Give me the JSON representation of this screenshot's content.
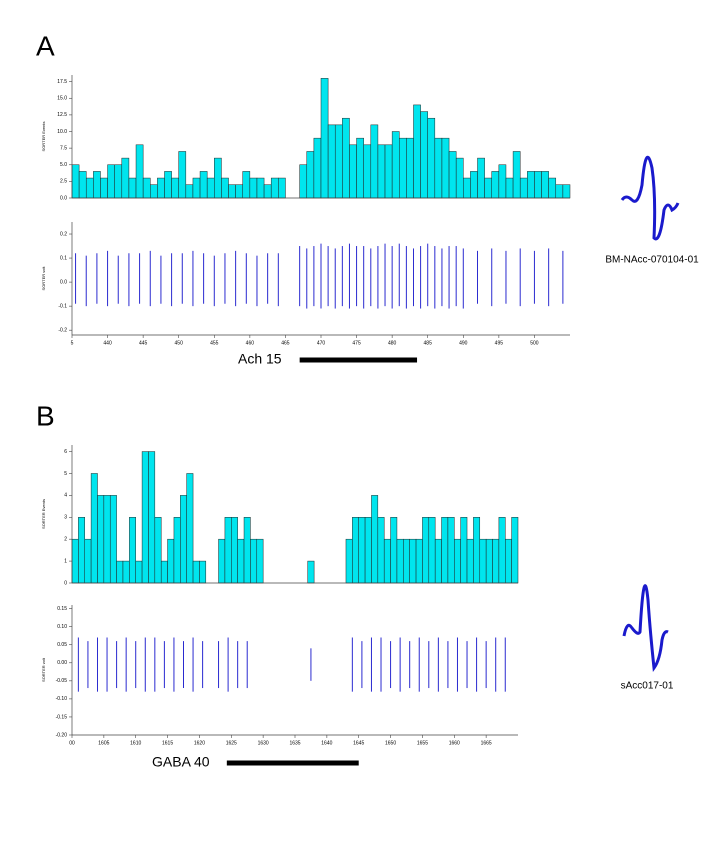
{
  "chart_data": [
    {
      "type": "histogram",
      "panel": "A",
      "unit": "BM-NAcc-070104-01",
      "y_label": "SORTER Events",
      "color": "#00e5ee",
      "bins": [
        435,
        436,
        437,
        438,
        439,
        440,
        441,
        442,
        443,
        444,
        445,
        446,
        447,
        448,
        449,
        450,
        451,
        452,
        453,
        454,
        455,
        456,
        457,
        458,
        459,
        460,
        461,
        462,
        463,
        464,
        465,
        466,
        467,
        468,
        469,
        470,
        471,
        472,
        473,
        474,
        475,
        476,
        477,
        478,
        479,
        480,
        481,
        482,
        483,
        484,
        485,
        486,
        487,
        488,
        489,
        490,
        491,
        492,
        493,
        494,
        495,
        496,
        497,
        498,
        499,
        500,
        501,
        502,
        503,
        504,
        505
      ],
      "values": [
        5,
        4,
        3,
        4,
        3,
        5,
        5,
        6,
        3,
        8,
        3,
        2,
        3,
        4,
        3,
        7,
        2,
        3,
        4,
        3,
        6,
        3,
        2,
        2,
        4,
        3,
        3,
        2,
        3,
        3,
        0,
        0,
        5,
        7,
        9,
        18,
        11,
        11,
        12,
        8,
        9,
        8,
        11,
        8,
        8,
        10,
        9,
        9,
        14,
        13,
        12,
        9,
        9,
        7,
        6,
        3,
        4,
        6,
        3,
        4,
        5,
        3,
        7,
        3,
        4,
        4,
        4,
        3,
        2,
        2
      ],
      "xlim": [
        435,
        505
      ],
      "xticks": [
        {
          "value": 435,
          "label": "5"
        },
        440,
        445,
        450,
        455,
        460,
        465,
        470,
        475,
        480,
        485,
        490,
        495,
        500
      ],
      "ylim": [
        0,
        18.5
      ],
      "yticks": [
        {
          "value": 0,
          "label": "0.0"
        },
        2.5,
        {
          "value": 5,
          "label": "5.0"
        },
        7.5,
        {
          "value": 10,
          "label": "10.0"
        },
        12.5,
        {
          "value": 15,
          "label": "15.0"
        },
        17.5
      ],
      "raster": {
        "y_label": "SORTER volt",
        "color": "#2a2ad0",
        "ylim": [
          -0.22,
          0.25
        ],
        "yticks": [
          -0.2,
          -0.1,
          {
            "value": 0,
            "label": "0.0"
          },
          0.1,
          0.2
        ],
        "x": [
          435.5,
          437,
          438.5,
          440,
          441.5,
          443,
          444.5,
          446,
          447.5,
          449,
          450.5,
          452,
          453.5,
          455,
          456.5,
          458,
          459.5,
          461,
          462.5,
          464,
          467,
          468,
          469,
          470,
          471,
          472,
          473,
          474,
          475,
          476,
          477,
          478,
          479,
          480,
          481,
          482,
          483,
          484,
          485,
          486,
          487,
          488,
          489,
          490,
          492,
          494,
          496,
          498,
          500,
          502,
          504
        ],
        "top": [
          0.12,
          0.11,
          0.12,
          0.13,
          0.11,
          0.12,
          0.12,
          0.13,
          0.11,
          0.12,
          0.12,
          0.13,
          0.12,
          0.11,
          0.12,
          0.13,
          0.12,
          0.11,
          0.12,
          0.12,
          0.15,
          0.14,
          0.15,
          0.16,
          0.15,
          0.14,
          0.15,
          0.16,
          0.15,
          0.15,
          0.14,
          0.15,
          0.16,
          0.15,
          0.16,
          0.15,
          0.14,
          0.15,
          0.16,
          0.15,
          0.14,
          0.15,
          0.15,
          0.14,
          0.13,
          0.14,
          0.13,
          0.14,
          0.13,
          0.14,
          0.13
        ],
        "bottom": [
          -0.09,
          -0.1,
          -0.09,
          -0.1,
          -0.09,
          -0.1,
          -0.09,
          -0.1,
          -0.09,
          -0.1,
          -0.09,
          -0.1,
          -0.09,
          -0.1,
          -0.09,
          -0.1,
          -0.09,
          -0.1,
          -0.09,
          -0.1,
          -0.1,
          -0.11,
          -0.1,
          -0.11,
          -0.1,
          -0.11,
          -0.1,
          -0.11,
          -0.1,
          -0.11,
          -0.1,
          -0.11,
          -0.1,
          -0.11,
          -0.1,
          -0.11,
          -0.1,
          -0.11,
          -0.1,
          -0.11,
          -0.1,
          -0.11,
          -0.1,
          -0.11,
          -0.09,
          -0.1,
          -0.09,
          -0.1,
          -0.09,
          -0.1,
          -0.09
        ]
      },
      "treatment": {
        "label": "Ach 15",
        "start": 467,
        "end": 483.5
      }
    },
    {
      "type": "histogram",
      "panel": "B",
      "unit": "sAcc017-01",
      "y_label": "SORTER Events",
      "color": "#00e5ee",
      "bins": [
        1600,
        1601,
        1602,
        1603,
        1604,
        1605,
        1606,
        1607,
        1608,
        1609,
        1610,
        1611,
        1612,
        1613,
        1614,
        1615,
        1616,
        1617,
        1618,
        1619,
        1620,
        1621,
        1622,
        1623,
        1624,
        1625,
        1626,
        1627,
        1628,
        1629,
        1630,
        1631,
        1632,
        1633,
        1634,
        1635,
        1636,
        1637,
        1638,
        1639,
        1640,
        1641,
        1642,
        1643,
        1644,
        1645,
        1646,
        1647,
        1648,
        1649,
        1650,
        1651,
        1652,
        1653,
        1654,
        1655,
        1656,
        1657,
        1658,
        1659,
        1660,
        1661,
        1662,
        1663,
        1664,
        1665,
        1666,
        1667,
        1668,
        1669,
        1670
      ],
      "values": [
        2,
        3,
        2,
        5,
        4,
        4,
        4,
        1,
        1,
        3,
        1,
        6,
        6,
        3,
        1,
        2,
        3,
        4,
        5,
        1,
        1,
        0,
        0,
        2,
        3,
        3,
        2,
        3,
        2,
        2,
        0,
        0,
        0,
        0,
        0,
        0,
        0,
        1,
        0,
        0,
        0,
        0,
        0,
        2,
        3,
        3,
        3,
        4,
        3,
        2,
        3,
        2,
        2,
        2,
        2,
        3,
        3,
        2,
        3,
        3,
        2,
        3,
        2,
        3,
        2,
        2,
        2,
        3,
        2,
        3
      ],
      "xlim": [
        1600,
        1670
      ],
      "xticks": [
        {
          "value": 1600,
          "label": "00"
        },
        1605,
        1610,
        1615,
        1620,
        1625,
        1630,
        1635,
        1640,
        1645,
        1650,
        1655,
        1660,
        1665
      ],
      "ylim": [
        0,
        6.3
      ],
      "yticks": [
        0,
        1,
        2,
        3,
        4,
        5,
        6
      ],
      "raster": {
        "y_label": "SORTER volt",
        "color": "#2a2ad0",
        "ylim": [
          -0.2,
          0.16
        ],
        "yticks": [
          {
            "value": -0.2,
            "label": "-0.20"
          },
          -0.15,
          {
            "value": -0.1,
            "label": "-0.10"
          },
          -0.05,
          {
            "value": 0,
            "label": "0.00"
          },
          0.05,
          {
            "value": 0.1,
            "label": "0.10"
          },
          0.15
        ],
        "x": [
          1601,
          1602.5,
          1604,
          1605.5,
          1607,
          1608.5,
          1610,
          1611.5,
          1613,
          1614.5,
          1616,
          1617.5,
          1619,
          1620.5,
          1623,
          1624.5,
          1626,
          1627.5,
          1637.5,
          1644,
          1645.5,
          1647,
          1648.5,
          1650,
          1651.5,
          1653,
          1654.5,
          1656,
          1657.5,
          1659,
          1660.5,
          1662,
          1663.5,
          1665,
          1666.5,
          1668
        ],
        "top": [
          0.07,
          0.06,
          0.07,
          0.07,
          0.06,
          0.07,
          0.06,
          0.07,
          0.07,
          0.06,
          0.07,
          0.06,
          0.07,
          0.06,
          0.06,
          0.07,
          0.06,
          0.06,
          0.04,
          0.07,
          0.06,
          0.07,
          0.07,
          0.06,
          0.07,
          0.06,
          0.07,
          0.06,
          0.07,
          0.06,
          0.07,
          0.06,
          0.07,
          0.06,
          0.07,
          0.07
        ],
        "bottom": [
          -0.08,
          -0.07,
          -0.08,
          -0.08,
          -0.07,
          -0.08,
          -0.07,
          -0.08,
          -0.08,
          -0.07,
          -0.08,
          -0.07,
          -0.08,
          -0.07,
          -0.07,
          -0.08,
          -0.07,
          -0.07,
          -0.05,
          -0.08,
          -0.07,
          -0.08,
          -0.08,
          -0.07,
          -0.08,
          -0.07,
          -0.08,
          -0.07,
          -0.08,
          -0.07,
          -0.08,
          -0.07,
          -0.08,
          -0.07,
          -0.08,
          -0.08
        ]
      },
      "treatment": {
        "label": "GABA 40",
        "start": 1624.3,
        "end": 1645
      }
    }
  ]
}
